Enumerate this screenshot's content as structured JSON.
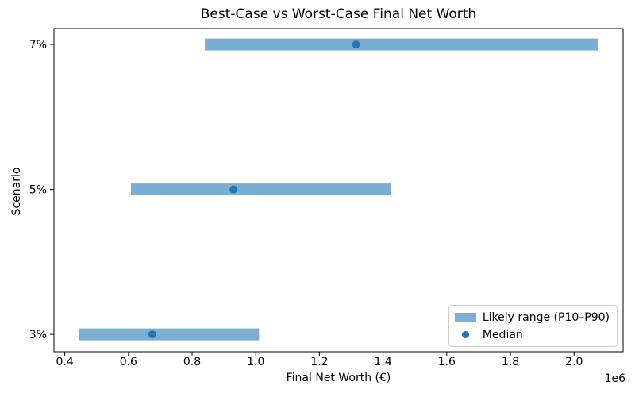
{
  "chart_data": {
    "type": "bar",
    "subtype": "horizontal-range-bar",
    "title": "Best-Case vs Worst-Case Final Net Worth",
    "xlabel": "Final Net Worth (€)",
    "ylabel": "Scenario",
    "x_offset_label": "1e6",
    "categories": [
      "3%",
      "5%",
      "7%"
    ],
    "series": [
      {
        "name": "Likely range (P10–P90)",
        "role": "range",
        "p10": [
          445000,
          608000,
          840000
        ],
        "p90": [
          1010000,
          1425000,
          2075000
        ]
      },
      {
        "name": "Median",
        "role": "point",
        "values": [
          675000,
          930000,
          1315000
        ]
      }
    ],
    "x_ticks": [
      400000,
      600000,
      800000,
      1000000,
      1200000,
      1400000,
      1600000,
      1800000,
      2000000
    ],
    "x_tick_labels": [
      "0.4",
      "0.6",
      "0.8",
      "1.0",
      "1.2",
      "1.4",
      "1.6",
      "1.8",
      "2.0"
    ],
    "xlim": [
      366000,
      2154000
    ],
    "ylim": [
      -0.12,
      2.11
    ],
    "grid": false,
    "legend_position": "lower right",
    "colors": {
      "range_bar": "#7aaed3",
      "median": "#1f77b4",
      "axis": "#000000",
      "legend_border": "#cccccc"
    }
  }
}
